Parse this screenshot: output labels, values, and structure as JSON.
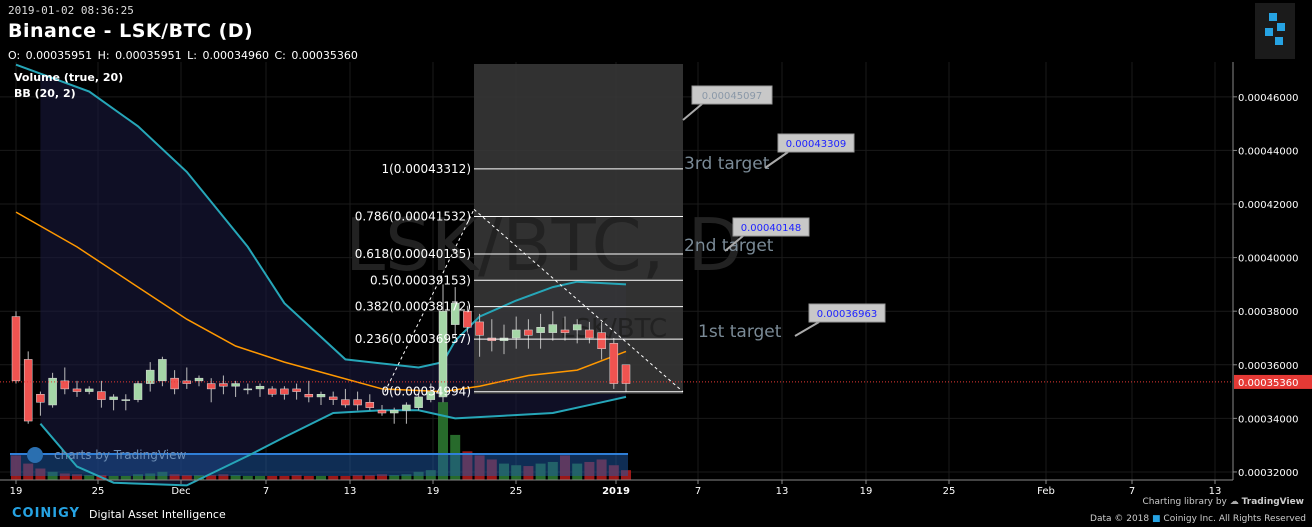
{
  "header": {
    "timestamp": "2019-01-02 08:36:25",
    "title": "Binance - LSK/BTC (D)",
    "ohlc": {
      "o_label": "O:",
      "o": "0.00035951",
      "h_label": "H:",
      "h": "0.00035951",
      "l_label": "L:",
      "l": "0.00034960",
      "c_label": "C:",
      "c": "0.00035360"
    }
  },
  "indicators": {
    "volume": "Volume (true, 20)",
    "bb": "BB (20, 2)"
  },
  "watermark": {
    "main": "LSK/BTC, D",
    "sub": "LSK/BTC"
  },
  "footer": {
    "brand": "COINIGY",
    "tagline": "Digital Asset Intelligence",
    "charting": "Charting library by",
    "tv": "TradingView",
    "copyright": "Data © 2018",
    "copyright2": "Coinigy Inc. All Rights Reserved",
    "tv_watermark": "charts by TradingView"
  },
  "colors": {
    "up": "#a5d6a7",
    "down": "#ef5350",
    "bb": "#26a6b8",
    "bb_mid": "#ff9800",
    "vol_up": "#2e7d32",
    "vol_down": "#b71c1c",
    "last_price": "#e53935",
    "target_box": "#c8c8c8",
    "target_text": "#1e22ff"
  },
  "chart_data": {
    "type": "candlestick",
    "x_tick_labels": [
      "19",
      "25",
      "Dec",
      "7",
      "13",
      "19",
      "25",
      "2019",
      "7",
      "13",
      "19",
      "25",
      "Feb",
      "7",
      "13"
    ],
    "y_tick_labels": [
      "0.00032000",
      "0.00034000",
      "0.00036000",
      "0.00038000",
      "0.00040000",
      "0.00042000",
      "0.00044000",
      "0.00046000"
    ],
    "ylim": [
      0.000317,
      0.000473
    ],
    "last_price": "0.00035360",
    "candles": [
      [
        0.000378,
        0.00038,
        0.000353,
        0.000354
      ],
      [
        0.000362,
        0.000365,
        0.000338,
        0.000339
      ],
      [
        0.000349,
        0.00035,
        0.000341,
        0.000346
      ],
      [
        0.000345,
        0.000357,
        0.000344,
        0.000355
      ],
      [
        0.000354,
        0.000359,
        0.000349,
        0.000351
      ],
      [
        0.000351,
        0.000354,
        0.000348,
        0.00035
      ],
      [
        0.00035,
        0.000352,
        0.000349,
        0.000351
      ],
      [
        0.00035,
        0.000354,
        0.000344,
        0.000347
      ],
      [
        0.000347,
        0.000349,
        0.000343,
        0.000348
      ],
      [
        0.000347,
        0.000349,
        0.000343,
        0.000347
      ],
      [
        0.000347,
        0.000354,
        0.000346,
        0.000353
      ],
      [
        0.000353,
        0.000361,
        0.00035,
        0.000358
      ],
      [
        0.000354,
        0.000363,
        0.000352,
        0.000362
      ],
      [
        0.000355,
        0.000358,
        0.000349,
        0.000351
      ],
      [
        0.000354,
        0.000359,
        0.000351,
        0.000353
      ],
      [
        0.000354,
        0.000356,
        0.000352,
        0.000355
      ],
      [
        0.000353,
        0.000355,
        0.000346,
        0.000351
      ],
      [
        0.000353,
        0.000356,
        0.000349,
        0.000352
      ],
      [
        0.000352,
        0.000354,
        0.000348,
        0.000353
      ],
      [
        0.000351,
        0.000353,
        0.000349,
        0.000351
      ],
      [
        0.000351,
        0.000353,
        0.000348,
        0.000352
      ],
      [
        0.000351,
        0.000352,
        0.000348,
        0.000349
      ],
      [
        0.000351,
        0.000352,
        0.000347,
        0.000349
      ],
      [
        0.000351,
        0.000353,
        0.000347,
        0.00035
      ],
      [
        0.000349,
        0.000354,
        0.000346,
        0.000348
      ],
      [
        0.000348,
        0.00035,
        0.000345,
        0.000349
      ],
      [
        0.000348,
        0.00035,
        0.000345,
        0.000347
      ],
      [
        0.000347,
        0.000351,
        0.000344,
        0.000345
      ],
      [
        0.000347,
        0.00035,
        0.000343,
        0.000345
      ],
      [
        0.000346,
        0.000349,
        0.000343,
        0.000344
      ],
      [
        0.000343,
        0.000345,
        0.000341,
        0.000342
      ],
      [
        0.000342,
        0.000344,
        0.000338,
        0.000343
      ],
      [
        0.000343,
        0.000346,
        0.000338,
        0.000345
      ],
      [
        0.000344,
        0.000349,
        0.000343,
        0.000348
      ],
      [
        0.000347,
        0.000353,
        0.000346,
        0.00035
      ],
      [
        0.000348,
        0.00039,
        0.000346,
        0.00038
      ],
      [
        0.000375,
        0.000389,
        0.00037,
        0.000383
      ],
      [
        0.00038,
        0.000382,
        0.000372,
        0.000374
      ],
      [
        0.000376,
        0.000379,
        0.000363,
        0.000371
      ],
      [
        0.00037,
        0.000377,
        0.000365,
        0.000369
      ],
      [
        0.000369,
        0.000375,
        0.000364,
        0.00037
      ],
      [
        0.00037,
        0.000378,
        0.000366,
        0.000373
      ],
      [
        0.000373,
        0.000377,
        0.000366,
        0.000371
      ],
      [
        0.000372,
        0.000379,
        0.000366,
        0.000374
      ],
      [
        0.000372,
        0.00038,
        0.000369,
        0.000375
      ],
      [
        0.000373,
        0.000378,
        0.000369,
        0.000372
      ],
      [
        0.000373,
        0.000377,
        0.000368,
        0.000375
      ],
      [
        0.000373,
        0.000376,
        0.000368,
        0.00037
      ],
      [
        0.000372,
        0.000376,
        0.000362,
        0.000366
      ],
      [
        0.000368,
        0.00037,
        0.000351,
        0.000353
      ],
      [
        0.00036,
        0.00036,
        0.00035,
        0.000353
      ]
    ],
    "bb_upper": [
      [
        0,
        0.000472
      ],
      [
        6,
        0.000462
      ],
      [
        10,
        0.000449
      ],
      [
        14,
        0.000432
      ],
      [
        19,
        0.000404
      ],
      [
        22,
        0.000383
      ],
      [
        27,
        0.000362
      ],
      [
        33,
        0.000359
      ],
      [
        35,
        0.000361
      ],
      [
        36,
        0.000369
      ],
      [
        38,
        0.000378
      ],
      [
        41,
        0.000384
      ],
      [
        44,
        0.000389
      ],
      [
        46,
        0.000391
      ],
      [
        50,
        0.00039
      ]
    ],
    "bb_middle": [
      [
        0,
        0.000417
      ],
      [
        5,
        0.000404
      ],
      [
        10,
        0.000389
      ],
      [
        14,
        0.000377
      ],
      [
        18,
        0.000367
      ],
      [
        22,
        0.000361
      ],
      [
        26,
        0.000356
      ],
      [
        30,
        0.000351
      ],
      [
        35,
        0.00035
      ],
      [
        38,
        0.000352
      ],
      [
        42,
        0.000356
      ],
      [
        46,
        0.000358
      ],
      [
        50,
        0.000365
      ]
    ],
    "bb_lower": [
      [
        2,
        0.000338
      ],
      [
        5,
        0.000322
      ],
      [
        8,
        0.000316
      ],
      [
        14,
        0.000315
      ],
      [
        19,
        0.000326
      ],
      [
        22,
        0.000333
      ],
      [
        26,
        0.000342
      ],
      [
        30,
        0.000343
      ],
      [
        33,
        0.000343
      ],
      [
        36,
        0.00034
      ],
      [
        40,
        0.000341
      ],
      [
        44,
        0.000342
      ],
      [
        48,
        0.000346
      ],
      [
        50,
        0.000348
      ]
    ],
    "volume": [
      0.3,
      0.2,
      0.14,
      0.1,
      0.08,
      0.07,
      0.06,
      0.06,
      0.05,
      0.05,
      0.07,
      0.08,
      0.1,
      0.07,
      0.06,
      0.06,
      0.06,
      0.07,
      0.06,
      0.05,
      0.05,
      0.05,
      0.05,
      0.06,
      0.05,
      0.05,
      0.05,
      0.05,
      0.06,
      0.06,
      0.07,
      0.06,
      0.07,
      0.1,
      0.12,
      0.95,
      0.55,
      0.35,
      0.3,
      0.25,
      0.2,
      0.18,
      0.17,
      0.2,
      0.22,
      0.3,
      0.2,
      0.22,
      0.25,
      0.18,
      0.12
    ],
    "fib_levels": [
      {
        "label": "1(0.00043312)",
        "value": 0.00043312
      },
      {
        "label": "0.786(0.00041532)",
        "value": 0.00041532
      },
      {
        "label": "0.618(0.00040135)",
        "value": 0.00040135
      },
      {
        "label": "0.5(0.00039153)",
        "value": 0.00039153
      },
      {
        "label": "0.382(0.00038172)",
        "value": 0.00038172
      },
      {
        "label": "0.236(0.00036957)",
        "value": 0.00036957
      },
      {
        "label": "0(0.00034994)",
        "value": 0.00034994
      }
    ],
    "targets": [
      {
        "text": "1st target",
        "value": 0.00036963,
        "box": "0.00036963"
      },
      {
        "text": "2nd target",
        "value": 0.00040148,
        "box": "0.00040148"
      },
      {
        "text": "3rd target",
        "value": 0.00043309,
        "box": "0.00043309"
      }
    ],
    "top_box": "0.00045097"
  }
}
